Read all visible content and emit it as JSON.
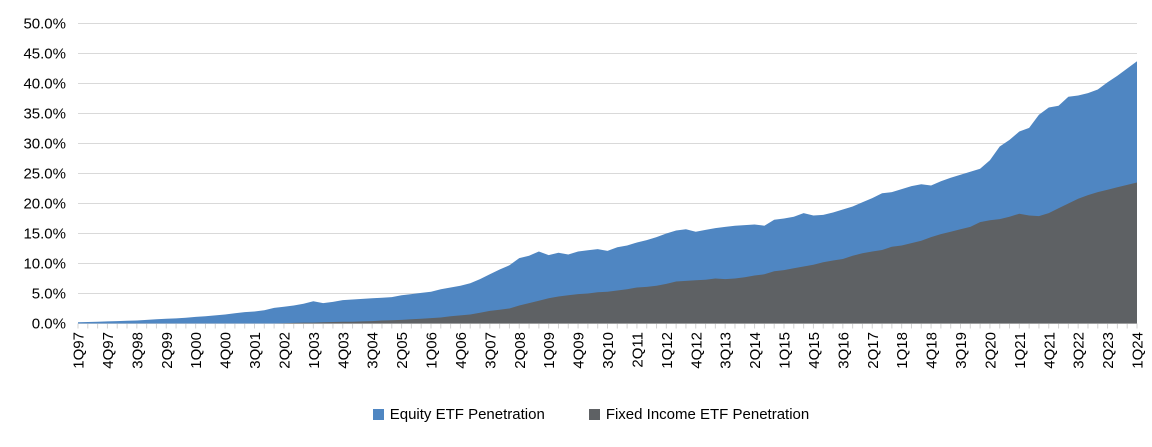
{
  "chart_data": {
    "type": "area",
    "title": "",
    "xlabel": "",
    "ylabel": "",
    "ylim": [
      0,
      50
    ],
    "y_tick_step_pct": 5,
    "y_ticks": [
      "50.0%",
      "45.0%",
      "40.0%",
      "35.0%",
      "30.0%",
      "25.0%",
      "20.0%",
      "15.0%",
      "10.0%",
      "5.0%",
      "0.0%"
    ],
    "grid": "horizontal",
    "legend_position": "bottom-center",
    "draw_style": "overlapping areas, Fixed Income drawn in front of Equity, both baselined at 0%",
    "colors": {
      "equity": "#4f86c2",
      "fixed_income": "#5e6164",
      "gridline": "#d9d9d9",
      "tick": "#d3d3d3",
      "label": "#000000"
    },
    "x_tick_every": 3,
    "x_tick_labels": [
      "1Q97",
      "4Q97",
      "3Q98",
      "2Q99",
      "1Q00",
      "4Q00",
      "3Q01",
      "2Q02",
      "1Q03",
      "4Q03",
      "3Q04",
      "2Q05",
      "1Q06",
      "4Q06",
      "3Q07",
      "2Q08",
      "1Q09",
      "4Q09",
      "3Q10",
      "2Q11",
      "1Q12",
      "4Q12",
      "3Q13",
      "2Q14",
      "1Q15",
      "4Q15",
      "3Q16",
      "2Q17",
      "1Q18",
      "4Q18",
      "3Q19",
      "2Q20",
      "1Q21",
      "4Q21",
      "3Q22",
      "2Q23",
      "1Q24"
    ],
    "x": [
      "1Q97",
      "2Q97",
      "3Q97",
      "4Q97",
      "1Q98",
      "2Q98",
      "3Q98",
      "4Q98",
      "1Q99",
      "2Q99",
      "3Q99",
      "4Q99",
      "1Q00",
      "2Q00",
      "3Q00",
      "4Q00",
      "1Q01",
      "2Q01",
      "3Q01",
      "4Q01",
      "1Q02",
      "2Q02",
      "3Q02",
      "4Q02",
      "1Q03",
      "2Q03",
      "3Q03",
      "4Q03",
      "1Q04",
      "2Q04",
      "3Q04",
      "4Q04",
      "1Q05",
      "2Q05",
      "3Q05",
      "4Q05",
      "1Q06",
      "2Q06",
      "3Q06",
      "4Q06",
      "1Q07",
      "2Q07",
      "3Q07",
      "4Q07",
      "1Q08",
      "2Q08",
      "3Q08",
      "4Q08",
      "1Q09",
      "2Q09",
      "3Q09",
      "4Q09",
      "1Q10",
      "2Q10",
      "3Q10",
      "4Q10",
      "1Q11",
      "2Q11",
      "3Q11",
      "4Q11",
      "1Q12",
      "2Q12",
      "3Q12",
      "4Q12",
      "1Q13",
      "2Q13",
      "3Q13",
      "4Q13",
      "1Q14",
      "2Q14",
      "3Q14",
      "4Q14",
      "1Q15",
      "2Q15",
      "3Q15",
      "4Q15",
      "1Q16",
      "2Q16",
      "3Q16",
      "4Q16",
      "1Q17",
      "2Q17",
      "3Q17",
      "4Q17",
      "1Q18",
      "2Q18",
      "3Q18",
      "4Q18",
      "1Q19",
      "2Q19",
      "3Q19",
      "4Q19",
      "1Q20",
      "2Q20",
      "3Q20",
      "4Q20",
      "1Q21",
      "2Q21",
      "3Q21",
      "4Q21",
      "1Q22",
      "2Q22",
      "3Q22",
      "4Q22",
      "1Q23",
      "2Q23",
      "3Q23",
      "4Q23",
      "1Q24"
    ],
    "series": [
      {
        "name": "Equity ETF Penetration",
        "color": "#4f86c2",
        "values": [
          0.2,
          0.25,
          0.3,
          0.35,
          0.4,
          0.45,
          0.5,
          0.6,
          0.7,
          0.8,
          0.85,
          0.95,
          1.1,
          1.2,
          1.35,
          1.5,
          1.7,
          1.9,
          2.0,
          2.2,
          2.6,
          2.8,
          3.0,
          3.3,
          3.7,
          3.4,
          3.6,
          3.9,
          4.0,
          4.1,
          4.2,
          4.3,
          4.4,
          4.7,
          4.9,
          5.1,
          5.3,
          5.7,
          6.0,
          6.3,
          6.7,
          7.4,
          8.2,
          9.0,
          9.7,
          10.9,
          11.3,
          12.0,
          11.4,
          11.8,
          11.5,
          12.0,
          12.2,
          12.4,
          12.1,
          12.7,
          13.0,
          13.5,
          13.9,
          14.4,
          15.0,
          15.5,
          15.7,
          15.3,
          15.6,
          15.9,
          16.1,
          16.3,
          16.4,
          16.5,
          16.3,
          17.3,
          17.5,
          17.8,
          18.4,
          18.0,
          18.1,
          18.5,
          19.0,
          19.5,
          20.2,
          20.9,
          21.7,
          21.9,
          22.4,
          22.9,
          23.2,
          23.0,
          23.7,
          24.3,
          24.8,
          25.3,
          25.8,
          27.2,
          29.5,
          30.6,
          32.0,
          32.6,
          34.8,
          36.0,
          36.3,
          37.8,
          38.0,
          38.4,
          39.0,
          40.2,
          41.3,
          42.5,
          43.7
        ]
      },
      {
        "name": "Fixed Income ETF Penetration",
        "color": "#5e6164",
        "values": [
          0,
          0,
          0,
          0,
          0,
          0,
          0,
          0,
          0,
          0,
          0,
          0,
          0,
          0,
          0,
          0,
          0,
          0,
          0,
          0,
          0,
          0.05,
          0.1,
          0.15,
          0.15,
          0.2,
          0.25,
          0.3,
          0.3,
          0.35,
          0.4,
          0.5,
          0.55,
          0.6,
          0.7,
          0.8,
          0.9,
          1.0,
          1.2,
          1.35,
          1.5,
          1.8,
          2.1,
          2.3,
          2.5,
          3.0,
          3.4,
          3.8,
          4.2,
          4.5,
          4.7,
          4.9,
          5.0,
          5.2,
          5.3,
          5.5,
          5.7,
          6.0,
          6.1,
          6.3,
          6.6,
          7.0,
          7.1,
          7.2,
          7.3,
          7.5,
          7.4,
          7.5,
          7.7,
          8.0,
          8.2,
          8.7,
          8.9,
          9.2,
          9.5,
          9.8,
          10.2,
          10.5,
          10.75,
          11.3,
          11.7,
          12.0,
          12.25,
          12.8,
          13.0,
          13.4,
          13.8,
          14.4,
          14.9,
          15.3,
          15.7,
          16.1,
          16.9,
          17.2,
          17.4,
          17.8,
          18.3,
          18.0,
          17.9,
          18.4,
          19.2,
          20.0,
          20.8,
          21.4,
          21.9,
          22.3,
          22.7,
          23.1,
          23.5
        ]
      }
    ]
  },
  "legend": {
    "items": [
      {
        "label": "Equity ETF Penetration",
        "color": "#4f86c2"
      },
      {
        "label": "Fixed Income ETF Penetration",
        "color": "#5e6164"
      }
    ]
  }
}
